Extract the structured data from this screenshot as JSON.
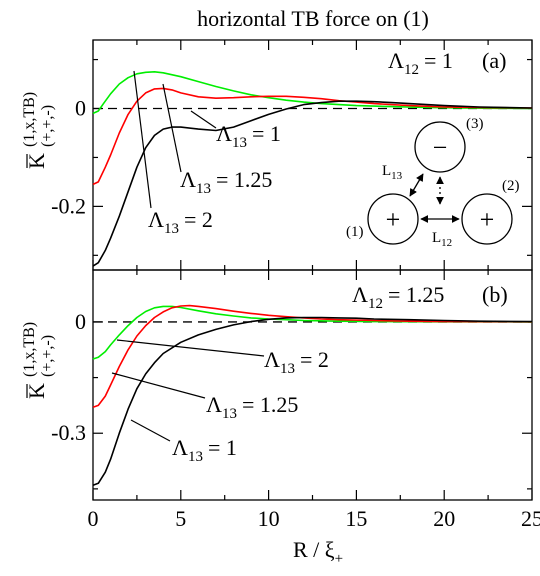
{
  "figure_title": "horizontal TB force on (1)",
  "x_axis": {
    "label_main": "R / ξ",
    "label_sub": "+",
    "ticks": [
      0,
      5,
      10,
      15,
      20,
      25
    ],
    "range": [
      0,
      25
    ]
  },
  "y_label": {
    "main": "K",
    "sup": "(1,x,TB)",
    "sub": "(+,+,-)"
  },
  "colors": {
    "lambda_1": "#000000",
    "lambda_1_25": "#ff0000",
    "lambda_2": "#00ee00",
    "axes": "#000000"
  },
  "chart_data": [
    {
      "type": "line",
      "panel_tag": "(a)",
      "param_main": "Λ",
      "param_sub": "12",
      "param_value": "= 1",
      "ylim": [
        -0.33,
        0.14
      ],
      "yticks": [
        0,
        -0.2
      ],
      "grid": false,
      "reference_line": {
        "y": 0,
        "style": "dashed"
      },
      "series": [
        {
          "name": "Λ13 = 2",
          "name_main": "Λ",
          "name_sub": "13",
          "name_value": "= 2",
          "color_key": "lambda_2",
          "points": [
            [
              0,
              -0.01
            ],
            [
              0.3,
              -0.005
            ],
            [
              0.6,
              0.01
            ],
            [
              1,
              0.03
            ],
            [
              1.5,
              0.05
            ],
            [
              2,
              0.063
            ],
            [
              2.5,
              0.071
            ],
            [
              3,
              0.074
            ],
            [
              3.5,
              0.075
            ],
            [
              4,
              0.073
            ],
            [
              5,
              0.065
            ],
            [
              6,
              0.055
            ],
            [
              7,
              0.045
            ],
            [
              8,
              0.036
            ],
            [
              9,
              0.028
            ],
            [
              10,
              0.022
            ],
            [
              11,
              0.017
            ],
            [
              12,
              0.013
            ],
            [
              13,
              0.01
            ],
            [
              14,
              0.008
            ],
            [
              15,
              0.006
            ],
            [
              17,
              0.004
            ],
            [
              19,
              0.002
            ],
            [
              21,
              0.001
            ],
            [
              23,
              0.0005
            ],
            [
              25,
              0.0002
            ]
          ]
        },
        {
          "name": "Λ13 = 1.25",
          "name_main": "Λ",
          "name_sub": "13",
          "name_value": "= 1.25",
          "color_key": "lambda_1_25",
          "points": [
            [
              0,
              -0.155
            ],
            [
              0.3,
              -0.15
            ],
            [
              0.7,
              -0.12
            ],
            [
              1,
              -0.095
            ],
            [
              1.5,
              -0.05
            ],
            [
              2,
              -0.012
            ],
            [
              2.5,
              0.015
            ],
            [
              3,
              0.032
            ],
            [
              3.5,
              0.04
            ],
            [
              4,
              0.041
            ],
            [
              4.5,
              0.038
            ],
            [
              5,
              0.032
            ],
            [
              6,
              0.024
            ],
            [
              7,
              0.021
            ],
            [
              8,
              0.022
            ],
            [
              9,
              0.024
            ],
            [
              10,
              0.025
            ],
            [
              11,
              0.025
            ],
            [
              12,
              0.023
            ],
            [
              13,
              0.02
            ],
            [
              14,
              0.016
            ],
            [
              15,
              0.013
            ],
            [
              16,
              0.01
            ],
            [
              18,
              0.006
            ],
            [
              20,
              0.003
            ],
            [
              22,
              0.002
            ],
            [
              25,
              0.001
            ]
          ]
        },
        {
          "name": "Λ13 = 1",
          "name_main": "Λ",
          "name_sub": "13",
          "name_value": "= 1",
          "color_key": "lambda_1",
          "points": [
            [
              0,
              -0.322
            ],
            [
              0.3,
              -0.315
            ],
            [
              0.7,
              -0.29
            ],
            [
              1,
              -0.265
            ],
            [
              1.5,
              -0.22
            ],
            [
              2,
              -0.17
            ],
            [
              2.5,
              -0.12
            ],
            [
              3,
              -0.08
            ],
            [
              3.5,
              -0.055
            ],
            [
              4,
              -0.042
            ],
            [
              4.5,
              -0.038
            ],
            [
              5,
              -0.038
            ],
            [
              6,
              -0.042
            ],
            [
              7,
              -0.045
            ],
            [
              8,
              -0.038
            ],
            [
              9,
              -0.025
            ],
            [
              10,
              -0.012
            ],
            [
              11,
              -0.001
            ],
            [
              12,
              0.008
            ],
            [
              13,
              0.012
            ],
            [
              14,
              0.015
            ],
            [
              15,
              0.015
            ],
            [
              16,
              0.014
            ],
            [
              17,
              0.012
            ],
            [
              18,
              0.01
            ],
            [
              19,
              0.008
            ],
            [
              20,
              0.006
            ],
            [
              22,
              0.003
            ],
            [
              25,
              0.001
            ]
          ]
        }
      ]
    },
    {
      "type": "line",
      "panel_tag": "(b)",
      "param_main": "Λ",
      "param_sub": "12",
      "param_value": "= 1.25",
      "ylim": [
        -0.48,
        0.14
      ],
      "yticks": [
        0,
        -0.3
      ],
      "grid": false,
      "reference_line": {
        "y": 0,
        "style": "dashed"
      },
      "series": [
        {
          "name": "Λ13 = 2",
          "name_main": "Λ",
          "name_sub": "13",
          "name_value": "= 2",
          "color_key": "lambda_2",
          "points": [
            [
              0,
              -0.1
            ],
            [
              0.3,
              -0.095
            ],
            [
              0.7,
              -0.08
            ],
            [
              1,
              -0.062
            ],
            [
              1.5,
              -0.035
            ],
            [
              2,
              -0.01
            ],
            [
              2.5,
              0.012
            ],
            [
              3,
              0.028
            ],
            [
              3.5,
              0.038
            ],
            [
              4,
              0.042
            ],
            [
              4.5,
              0.042
            ],
            [
              5,
              0.039
            ],
            [
              6,
              0.03
            ],
            [
              7,
              0.022
            ],
            [
              8,
              0.016
            ],
            [
              9,
              0.011
            ],
            [
              10,
              0.008
            ],
            [
              11,
              0.006
            ],
            [
              12,
              0.004
            ],
            [
              14,
              0.002
            ],
            [
              16,
              0.001
            ],
            [
              20,
              0.0004
            ],
            [
              25,
              0.0001
            ]
          ]
        },
        {
          "name": "Λ13 = 1.25",
          "name_main": "Λ",
          "name_sub": "13",
          "name_value": "= 1.25",
          "color_key": "lambda_1_25",
          "points": [
            [
              0,
              -0.23
            ],
            [
              0.3,
              -0.225
            ],
            [
              0.7,
              -0.2
            ],
            [
              1,
              -0.17
            ],
            [
              1.5,
              -0.12
            ],
            [
              2,
              -0.075
            ],
            [
              2.5,
              -0.038
            ],
            [
              3,
              -0.01
            ],
            [
              3.5,
              0.012
            ],
            [
              4,
              0.027
            ],
            [
              4.5,
              0.038
            ],
            [
              5,
              0.043
            ],
            [
              5.5,
              0.044
            ],
            [
              6,
              0.042
            ],
            [
              7,
              0.036
            ],
            [
              8,
              0.029
            ],
            [
              9,
              0.023
            ],
            [
              10,
              0.018
            ],
            [
              11,
              0.014
            ],
            [
              12,
              0.011
            ],
            [
              13,
              0.008
            ],
            [
              14,
              0.006
            ],
            [
              16,
              0.004
            ],
            [
              18,
              0.002
            ],
            [
              20,
              0.001
            ],
            [
              25,
              0.0003
            ]
          ]
        },
        {
          "name": "Λ13 = 1",
          "name_main": "Λ",
          "name_sub": "13",
          "name_value": "= 1",
          "color_key": "lambda_1",
          "points": [
            [
              0,
              -0.44
            ],
            [
              0.3,
              -0.435
            ],
            [
              0.7,
              -0.405
            ],
            [
              1,
              -0.37
            ],
            [
              1.5,
              -0.3
            ],
            [
              2,
              -0.235
            ],
            [
              2.5,
              -0.18
            ],
            [
              3,
              -0.14
            ],
            [
              3.5,
              -0.11
            ],
            [
              4,
              -0.085
            ],
            [
              5,
              -0.055
            ],
            [
              6,
              -0.035
            ],
            [
              7,
              -0.02
            ],
            [
              8,
              -0.008
            ],
            [
              9,
              0.001
            ],
            [
              10,
              0.007
            ],
            [
              11,
              0.011
            ],
            [
              12,
              0.012
            ],
            [
              13,
              0.012
            ],
            [
              14,
              0.011
            ],
            [
              15,
              0.01
            ],
            [
              16,
              0.008
            ],
            [
              18,
              0.006
            ],
            [
              20,
              0.004
            ],
            [
              22,
              0.002
            ],
            [
              25,
              0.001
            ]
          ]
        }
      ]
    }
  ],
  "inset": {
    "disk1": {
      "label": "(1)",
      "sign": "+"
    },
    "disk2": {
      "label": "(2)",
      "sign": "+"
    },
    "disk3": {
      "label": "(3)",
      "sign": "−"
    },
    "dist12": {
      "main": "L",
      "sub": "12"
    },
    "dist13": {
      "main": "L",
      "sub": "13"
    }
  }
}
